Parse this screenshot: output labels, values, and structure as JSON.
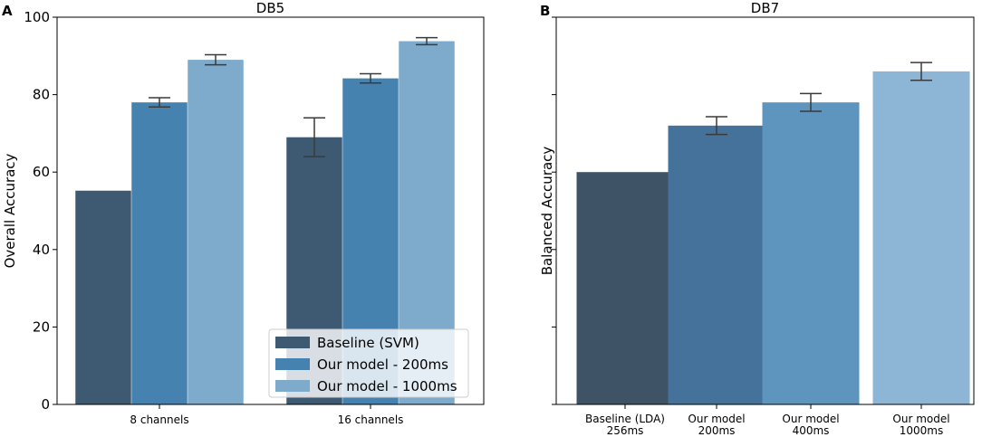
{
  "chart_data": [
    {
      "panel_label": "A",
      "type": "bar",
      "title": "DB5",
      "xlabel": "",
      "ylabel": "Overall Accuracy",
      "ylim": [
        0,
        100
      ],
      "yticks": [
        0,
        20,
        40,
        60,
        80,
        100
      ],
      "categories": [
        "8 channels",
        "16 channels"
      ],
      "series": [
        {
          "name": "Baseline (SVM)",
          "color": "#3e5a72",
          "values": [
            55.2,
            69
          ],
          "errors": [
            0,
            5
          ]
        },
        {
          "name": "Our model - 200ms",
          "color": "#4682b0",
          "values": [
            78,
            84.2
          ],
          "errors": [
            1.2,
            1.2
          ]
        },
        {
          "name": "Our model - 1000ms",
          "color": "#7eaacb",
          "values": [
            89,
            93.8
          ],
          "errors": [
            1.3,
            0.9
          ]
        }
      ],
      "legend_position": "lower-right"
    },
    {
      "panel_label": "B",
      "type": "bar",
      "title": "DB7",
      "xlabel": "",
      "ylabel": "Balanced Accuracy",
      "ylim": [
        0,
        100
      ],
      "yticks": [
        0,
        20,
        40,
        60,
        80,
        100
      ],
      "show_ytick_labels": false,
      "categories": [
        [
          "Baseline (LDA)",
          "256ms"
        ],
        [
          "Our model",
          "200ms"
        ],
        [
          "Our model",
          "400ms"
        ],
        [
          "Our model",
          "1000ms"
        ]
      ],
      "colors": [
        "#3e5366",
        "#44729a",
        "#5e95bf",
        "#8db5d5"
      ],
      "values": [
        60,
        72,
        78,
        86
      ],
      "errors": [
        0,
        2.3,
        2.3,
        2.3
      ]
    }
  ]
}
